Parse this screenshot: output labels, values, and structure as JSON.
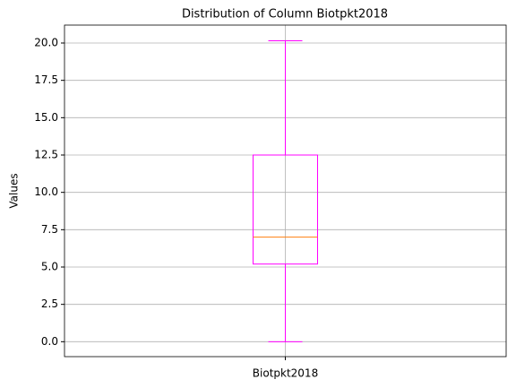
{
  "chart_data": {
    "type": "box",
    "title": "Distribution of Column Biotpkt2018",
    "ylabel": "Values",
    "categories": [
      "Biotpkt2018"
    ],
    "stats": [
      {
        "min": 0.0,
        "q1": 5.2,
        "median": 7.0,
        "q3": 12.5,
        "max": 20.15
      }
    ],
    "color": "#ff00ff",
    "median_color": "#ff7f0e",
    "ylim": [
      -1.0,
      21.2
    ],
    "yticks": [
      {
        "value": 0,
        "label": "0.0"
      },
      {
        "value": 2.5,
        "label": "2.5"
      },
      {
        "value": 5,
        "label": "5.0"
      },
      {
        "value": 7.5,
        "label": "7.5"
      },
      {
        "value": 10,
        "label": "10.0"
      },
      {
        "value": 12.5,
        "label": "12.5"
      },
      {
        "value": 15,
        "label": "15.0"
      },
      {
        "value": 17.5,
        "label": "17.5"
      },
      {
        "value": 20,
        "label": "20.0"
      }
    ],
    "grid": true
  }
}
